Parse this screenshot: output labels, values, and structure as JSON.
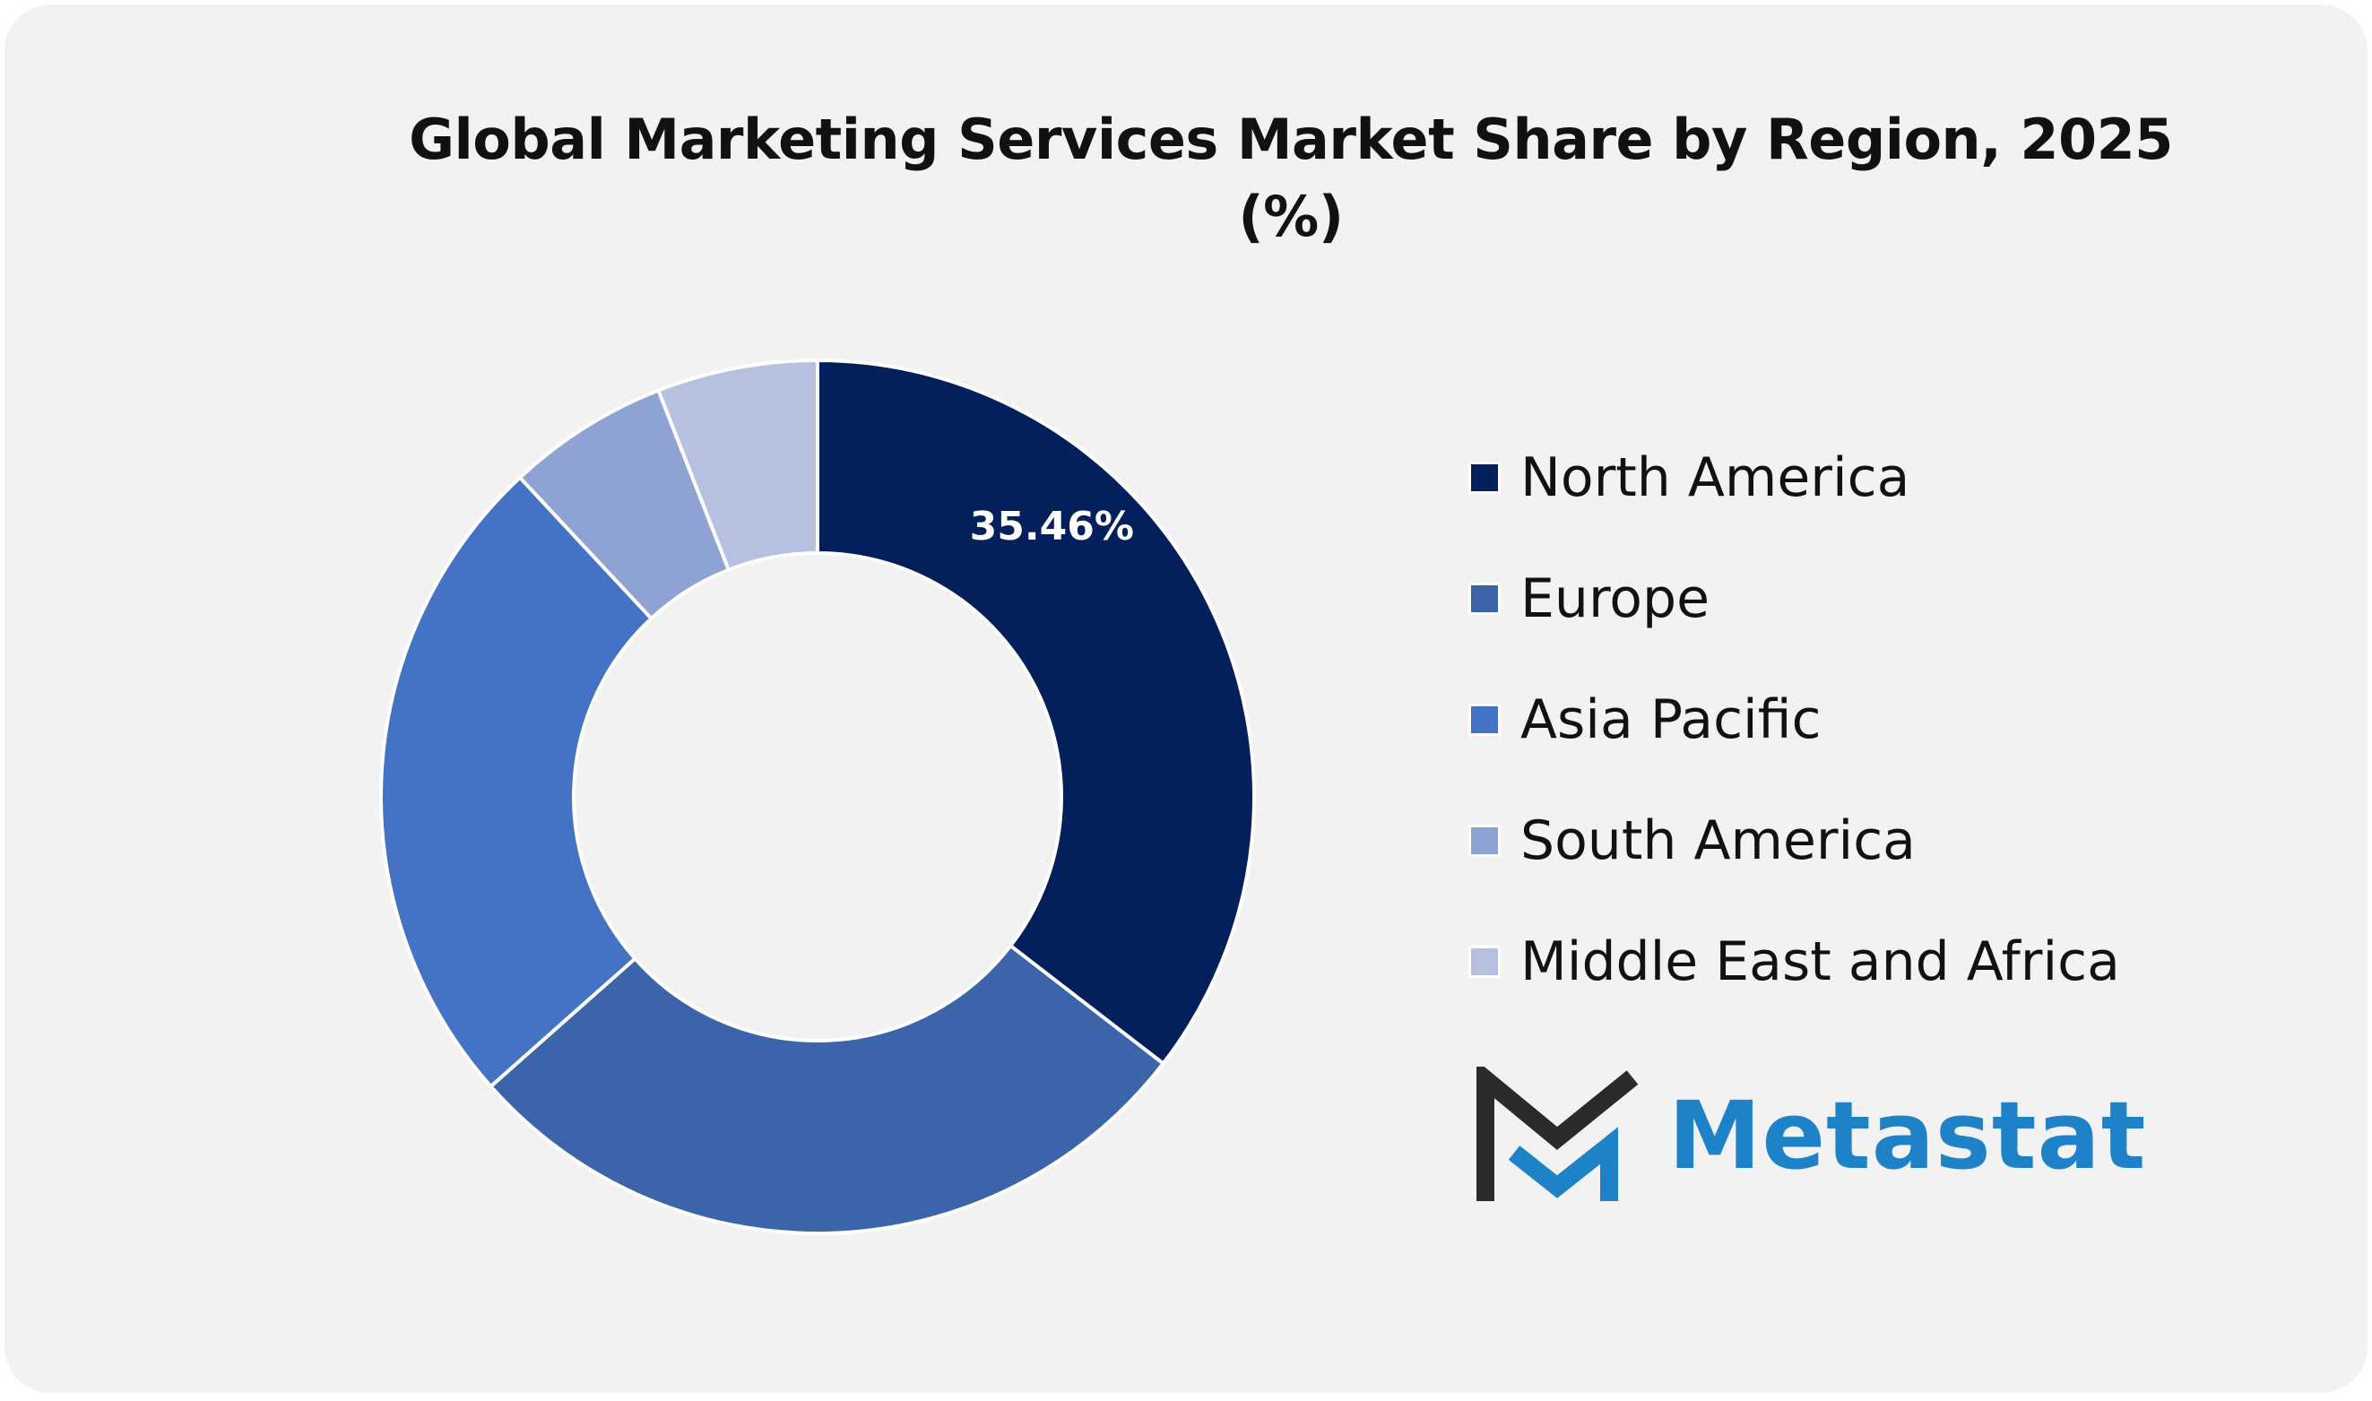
{
  "chart_data": {
    "type": "pie",
    "variant": "donut",
    "title": "Global Marketing Services Market Share by Region, 2025",
    "subtitle": "(%)",
    "categories": [
      "North America",
      "Europe",
      "Asia Pacific",
      "South America",
      "Middle East and Africa"
    ],
    "values": [
      35.46,
      28.0,
      24.6,
      6.0,
      5.94
    ],
    "data_labels": [
      "35.46%",
      "",
      "",
      "",
      ""
    ],
    "colors": [
      "#03205c",
      "#3c64ab",
      "#4472c4",
      "#8ea3d4",
      "#b6c1e2"
    ],
    "legend_position": "right"
  },
  "branding": {
    "logo_text": "Metastat"
  }
}
